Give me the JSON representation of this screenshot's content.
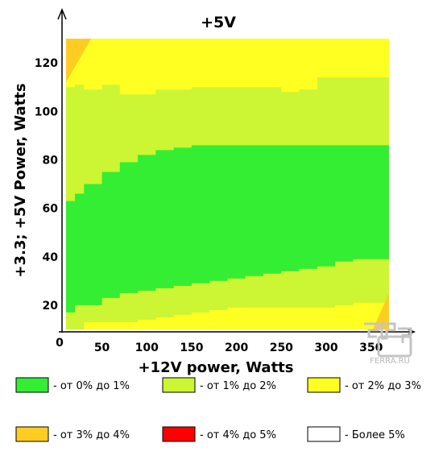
{
  "chart_data": {
    "type": "heatmap",
    "title": "+5V",
    "xlabel": "+12V power, Watts",
    "ylabel": "+3.3; +5V Power, Watts",
    "xlim": [
      10,
      370
    ],
    "ylim": [
      10,
      130
    ],
    "x_ticks": [
      50,
      100,
      150,
      200,
      250,
      300,
      350
    ],
    "y_ticks": [
      20,
      40,
      60,
      80,
      100,
      120
    ],
    "x_tick_labels": [
      "50",
      "100",
      "150",
      "200",
      "250",
      "300",
      "350"
    ],
    "y_tick_labels": [
      "20",
      "40",
      "60",
      "80",
      "100",
      "120"
    ],
    "origin_label": "0",
    "grid": false,
    "legend_position": "bottom",
    "levels": [
      {
        "key": "l1",
        "label": "- от 0% до 1%",
        "color": "#33ee33"
      },
      {
        "key": "l2",
        "label": "- от 1% до 2%",
        "color": "#ccf533"
      },
      {
        "key": "l3",
        "label": "- от 2% до 3%",
        "color": "#ffff22"
      },
      {
        "key": "l4",
        "label": "- от 3% до 4%",
        "color": "#ffcc22"
      },
      {
        "key": "l5",
        "label": "- от 4% до 5%",
        "color": "#ff0000"
      },
      {
        "key": "l6",
        "label": "- Более 5%",
        "color": "#ffffff"
      }
    ],
    "boundaries": {
      "x": [
        10,
        20,
        30,
        50,
        70,
        90,
        110,
        130,
        150,
        170,
        190,
        210,
        230,
        250,
        270,
        290,
        310,
        330,
        350,
        370
      ],
      "green_bottom": [
        17,
        20,
        20,
        23,
        25,
        26,
        27,
        28,
        29,
        30,
        31,
        32,
        33,
        34,
        35,
        36,
        38,
        39,
        39,
        40
      ],
      "green_top": [
        63,
        66,
        70,
        75,
        79,
        82,
        84,
        85,
        86,
        86,
        86,
        86,
        86,
        86,
        86,
        86,
        86,
        86,
        86,
        86
      ],
      "lime_bottom": [
        10,
        10,
        13,
        13,
        13,
        14,
        15,
        16,
        17,
        18,
        19,
        19,
        19,
        19,
        19,
        19,
        20,
        21,
        21,
        22
      ],
      "lime_top": [
        110,
        111,
        109,
        111,
        107,
        107,
        109,
        109,
        110,
        110,
        110,
        110,
        110,
        108,
        109,
        114,
        114,
        114,
        114,
        114
      ],
      "orange_corner": {
        "top_left": [
          [
            10,
            130
          ],
          [
            38,
            130
          ],
          [
            10,
            112
          ]
        ],
        "bottom_right": [
          [
            352,
            10
          ],
          [
            370,
            10
          ],
          [
            370,
            25
          ]
        ]
      }
    },
    "colors": {
      "axis": "#000000"
    }
  },
  "watermark": {
    "text": "FERRA.RU",
    "icon": "ferra-logo-icon"
  }
}
